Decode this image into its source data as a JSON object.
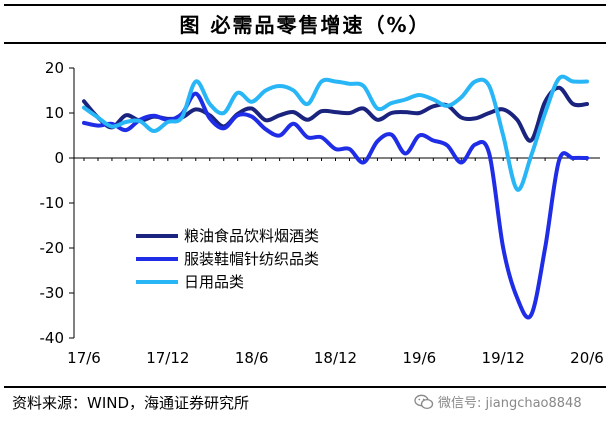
{
  "title": "图    必需品零售增速（%）",
  "source": "资料来源：WIND，海通证券研究所",
  "watermark": {
    "icon": "wechat-icon",
    "text": "微信号: jiangchao8848"
  },
  "colors": {
    "grain": "#1a237e",
    "clothing": "#1f2de6",
    "daily": "#29b6f6"
  },
  "chart_data": {
    "type": "line",
    "title": "必需品零售增速（%）",
    "xlabel": "",
    "ylabel": "",
    "ylim": [
      -40,
      20
    ],
    "yticks": [
      20,
      10,
      0,
      -10,
      -20,
      -30,
      -40
    ],
    "xlim": [
      0,
      36.5
    ],
    "xticks": [
      {
        "i": 0,
        "label": "17/6"
      },
      {
        "i": 6,
        "label": "17/12"
      },
      {
        "i": 12,
        "label": "18/6"
      },
      {
        "i": 18,
        "label": "18/12"
      },
      {
        "i": 24,
        "label": "19/6"
      },
      {
        "i": 30,
        "label": "19/12"
      },
      {
        "i": 36,
        "label": "20/6"
      }
    ],
    "x": [
      "2017-06",
      "2017-07",
      "2017-08",
      "2017-09",
      "2017-10",
      "2017-11",
      "2017-12",
      "2018-01",
      "2018-02",
      "2018-03",
      "2018-04",
      "2018-05",
      "2018-06",
      "2018-07",
      "2018-08",
      "2018-09",
      "2018-10",
      "2018-11",
      "2018-12",
      "2019-01",
      "2019-02",
      "2019-03",
      "2019-04",
      "2019-05",
      "2019-06",
      "2019-07",
      "2019-08",
      "2019-09",
      "2019-10",
      "2019-11",
      "2019-12",
      "2020-01",
      "2020-02",
      "2020-03",
      "2020-04",
      "2020-05",
      "2020-06"
    ],
    "legend_position": "center-left",
    "grid": false,
    "series": [
      {
        "name": "粮油食品饮料烟酒类",
        "color": "#1a237e",
        "values": [
          12.6,
          9.0,
          6.8,
          9.5,
          8.3,
          9.2,
          8.7,
          9.0,
          10.8,
          9.5,
          7.0,
          9.8,
          11.0,
          8.4,
          9.5,
          10.2,
          8.5,
          10.4,
          10.2,
          10.0,
          11.0,
          8.5,
          10.0,
          10.2,
          10.0,
          11.5,
          11.7,
          9.0,
          8.8,
          10.0,
          10.8,
          8.5,
          3.9,
          12.5,
          15.6,
          12.0,
          12.0
        ]
      },
      {
        "name": "服装鞋帽针纺织品类",
        "color": "#1f2de6",
        "values": [
          7.8,
          7.2,
          7.6,
          6.2,
          8.5,
          9.4,
          8.5,
          9.8,
          14.3,
          8.8,
          6.6,
          9.5,
          9.2,
          6.4,
          5.0,
          7.6,
          4.6,
          4.6,
          2.0,
          2.0,
          -1.0,
          3.7,
          5.2,
          1.0,
          5.0,
          3.9,
          2.8,
          -1.0,
          3.0,
          1.0,
          -20.0,
          -31.1,
          -34.9,
          -20.0,
          -0.5,
          0.0,
          0.0
        ]
      },
      {
        "name": "日用品类",
        "color": "#29b6f6",
        "values": [
          11.2,
          9.0,
          7.0,
          8.0,
          8.2,
          6.0,
          8.0,
          9.0,
          17.0,
          12.0,
          10.0,
          14.5,
          12.5,
          15.0,
          16.0,
          15.0,
          12.0,
          17.0,
          17.0,
          16.5,
          16.0,
          11.0,
          12.2,
          13.0,
          14.0,
          13.0,
          11.6,
          13.5,
          17.0,
          16.0,
          5.0,
          -7.0,
          0.5,
          10.0,
          17.7,
          17.0,
          17.0
        ]
      }
    ]
  }
}
